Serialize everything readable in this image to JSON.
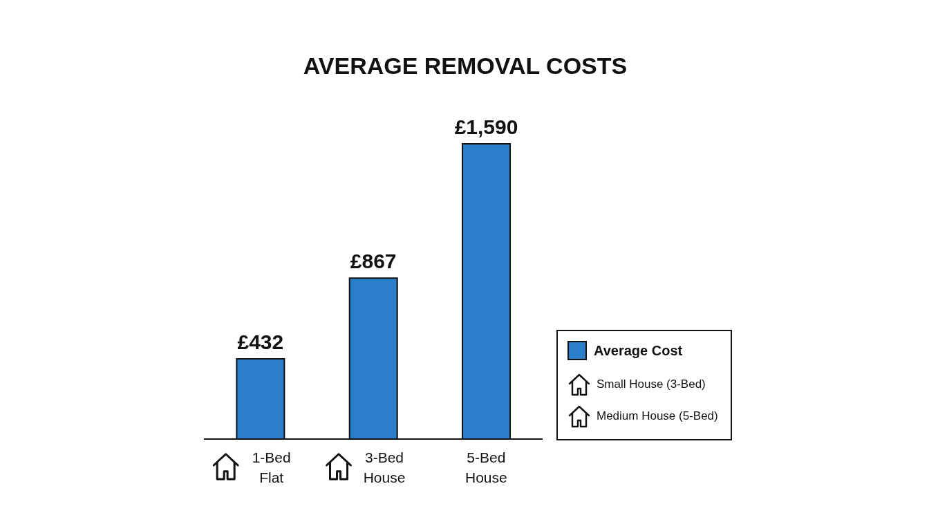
{
  "chart_data": {
    "type": "bar",
    "title": "AVERAGE REMOVAL COSTS",
    "categories": [
      "1-Bed Flat",
      "3-Bed House",
      "5-Bed House"
    ],
    "series": [
      {
        "name": "Average Cost",
        "color": "#2a7fc8",
        "values": [
          432,
          867,
          1590
        ],
        "value_labels": [
          "£432",
          "£867",
          "£1,590"
        ]
      }
    ],
    "annotations": [
      "Small House (3-Bed)",
      "Medium House (5-Bed)"
    ],
    "legend": "right"
  }
}
